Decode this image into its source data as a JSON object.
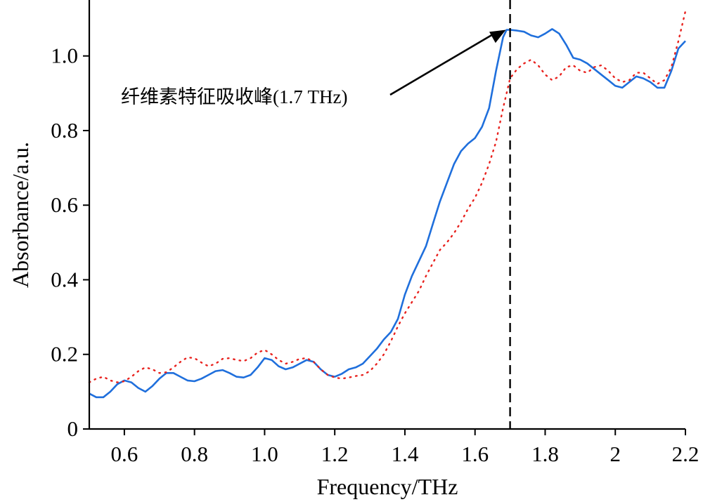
{
  "chart_data": {
    "type": "line",
    "xlabel": "Frequency/THz",
    "ylabel": "Absorbance/a.u.",
    "xlim": [
      0.5,
      2.2
    ],
    "ylim": [
      0,
      1.15
    ],
    "x_ticks": [
      {
        "value": 0.6,
        "label": "0.6"
      },
      {
        "value": 0.8,
        "label": "0.8"
      },
      {
        "value": 1.0,
        "label": "1.0"
      },
      {
        "value": 1.2,
        "label": "1.2"
      },
      {
        "value": 1.4,
        "label": "1.4"
      },
      {
        "value": 1.6,
        "label": "1.6"
      },
      {
        "value": 1.8,
        "label": "1.8"
      },
      {
        "value": 2.0,
        "label": "2"
      },
      {
        "value": 2.2,
        "label": "2.2"
      }
    ],
    "y_ticks": [
      {
        "value": 0,
        "label": "0"
      },
      {
        "value": 0.2,
        "label": "0.2"
      },
      {
        "value": 0.4,
        "label": "0.4"
      },
      {
        "value": 0.6,
        "label": "0.6"
      },
      {
        "value": 0.8,
        "label": "0.8"
      },
      {
        "value": 1.0,
        "label": "1.0"
      }
    ],
    "grid": false,
    "series": [
      {
        "style": "solid",
        "color": "#1f6fdc",
        "x": [
          0.5,
          0.52,
          0.54,
          0.56,
          0.58,
          0.6,
          0.62,
          0.64,
          0.66,
          0.68,
          0.7,
          0.72,
          0.74,
          0.76,
          0.78,
          0.8,
          0.82,
          0.84,
          0.86,
          0.88,
          0.9,
          0.92,
          0.94,
          0.96,
          0.98,
          1.0,
          1.02,
          1.04,
          1.06,
          1.08,
          1.1,
          1.12,
          1.14,
          1.16,
          1.18,
          1.2,
          1.22,
          1.24,
          1.26,
          1.28,
          1.3,
          1.32,
          1.34,
          1.36,
          1.38,
          1.4,
          1.42,
          1.44,
          1.46,
          1.48,
          1.5,
          1.52,
          1.54,
          1.56,
          1.58,
          1.6,
          1.62,
          1.64,
          1.66,
          1.68,
          1.69,
          1.7,
          1.72,
          1.74,
          1.76,
          1.78,
          1.8,
          1.82,
          1.84,
          1.86,
          1.88,
          1.9,
          1.92,
          1.94,
          1.96,
          1.98,
          2.0,
          2.02,
          2.04,
          2.06,
          2.08,
          2.1,
          2.12,
          2.14,
          2.16,
          2.18,
          2.2
        ],
        "y": [
          0.095,
          0.085,
          0.085,
          0.1,
          0.12,
          0.13,
          0.125,
          0.11,
          0.1,
          0.115,
          0.135,
          0.15,
          0.15,
          0.14,
          0.13,
          0.128,
          0.135,
          0.145,
          0.155,
          0.158,
          0.15,
          0.14,
          0.138,
          0.145,
          0.165,
          0.19,
          0.185,
          0.168,
          0.16,
          0.165,
          0.175,
          0.185,
          0.18,
          0.16,
          0.145,
          0.14,
          0.148,
          0.16,
          0.165,
          0.175,
          0.195,
          0.215,
          0.24,
          0.26,
          0.295,
          0.36,
          0.41,
          0.45,
          0.49,
          0.55,
          0.61,
          0.66,
          0.71,
          0.745,
          0.765,
          0.78,
          0.81,
          0.86,
          0.96,
          1.05,
          1.07,
          1.07,
          1.068,
          1.065,
          1.055,
          1.05,
          1.06,
          1.072,
          1.06,
          1.03,
          0.995,
          0.99,
          0.98,
          0.965,
          0.95,
          0.935,
          0.92,
          0.915,
          0.93,
          0.945,
          0.94,
          0.93,
          0.915,
          0.915,
          0.96,
          1.02,
          1.04
        ]
      },
      {
        "style": "dotted",
        "color": "#e8221e",
        "x": [
          0.5,
          0.52,
          0.54,
          0.56,
          0.58,
          0.6,
          0.62,
          0.64,
          0.66,
          0.68,
          0.7,
          0.72,
          0.74,
          0.76,
          0.78,
          0.8,
          0.82,
          0.84,
          0.86,
          0.88,
          0.9,
          0.92,
          0.94,
          0.96,
          0.98,
          1.0,
          1.02,
          1.04,
          1.06,
          1.08,
          1.1,
          1.12,
          1.14,
          1.16,
          1.18,
          1.2,
          1.22,
          1.24,
          1.26,
          1.28,
          1.3,
          1.32,
          1.34,
          1.36,
          1.38,
          1.4,
          1.42,
          1.44,
          1.46,
          1.48,
          1.5,
          1.52,
          1.54,
          1.56,
          1.58,
          1.6,
          1.62,
          1.64,
          1.66,
          1.68,
          1.7,
          1.72,
          1.74,
          1.76,
          1.78,
          1.8,
          1.82,
          1.84,
          1.86,
          1.88,
          1.9,
          1.92,
          1.94,
          1.96,
          1.98,
          2.0,
          2.02,
          2.04,
          2.06,
          2.08,
          2.1,
          2.12,
          2.14,
          2.16,
          2.18,
          2.2
        ],
        "y": [
          0.125,
          0.135,
          0.14,
          0.13,
          0.125,
          0.128,
          0.14,
          0.155,
          0.165,
          0.16,
          0.15,
          0.152,
          0.165,
          0.18,
          0.192,
          0.19,
          0.178,
          0.168,
          0.175,
          0.188,
          0.19,
          0.185,
          0.182,
          0.19,
          0.205,
          0.212,
          0.2,
          0.185,
          0.175,
          0.18,
          0.188,
          0.19,
          0.18,
          0.16,
          0.145,
          0.138,
          0.135,
          0.138,
          0.142,
          0.145,
          0.155,
          0.175,
          0.2,
          0.235,
          0.275,
          0.31,
          0.34,
          0.37,
          0.41,
          0.445,
          0.48,
          0.5,
          0.525,
          0.555,
          0.59,
          0.62,
          0.66,
          0.71,
          0.77,
          0.86,
          0.94,
          0.965,
          0.98,
          0.99,
          0.975,
          0.95,
          0.935,
          0.945,
          0.97,
          0.975,
          0.96,
          0.955,
          0.97,
          0.975,
          0.96,
          0.94,
          0.93,
          0.935,
          0.955,
          0.955,
          0.94,
          0.925,
          0.935,
          0.97,
          1.04,
          1.12
        ]
      }
    ],
    "reference_line": {
      "x": 1.7,
      "style": "dashed"
    },
    "annotation": {
      "text": "纤维素特征吸收峰(1.7 THz)",
      "arrow_to": {
        "x": 1.7,
        "y": 1.07
      }
    }
  }
}
